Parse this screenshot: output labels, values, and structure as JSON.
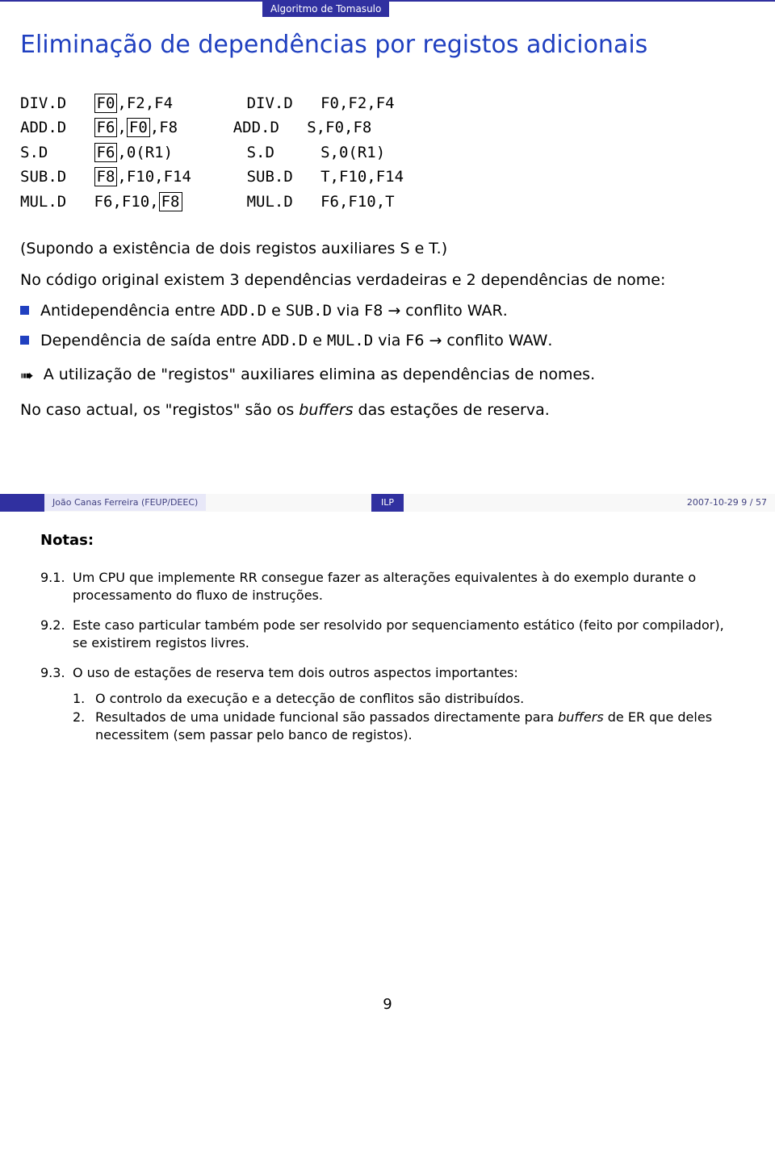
{
  "header": {
    "tag": "Algoritmo de Tomasulo"
  },
  "title": "Eliminação de dependências por registos adicionais",
  "code": {
    "left": {
      "r1": {
        "op": "DIV.D",
        "a": "F0",
        "b": ",F2,F4"
      },
      "r2": {
        "op": "ADD.D",
        "a": "F6",
        "b": ",",
        "c": "F0",
        "d": ",F8"
      },
      "r3": {
        "op": "S.D",
        "a": "F6",
        "b": ",0(R1)"
      },
      "r4": {
        "op": "SUB.D",
        "a": "F8",
        "b": ",F10,F14"
      },
      "r5": {
        "op": "MUL.D",
        "a": "F6,F10,",
        "b": "F8"
      }
    },
    "right": {
      "r1": "DIV.D   F0,F2,F4",
      "r2": "ADD.D   S,F0,F8",
      "r3": "S.D     S,0(R1)",
      "r4": "SUB.D   T,F10,F14",
      "r5": "MUL.D   F6,F10,T"
    }
  },
  "para1": "(Supondo a existência de dois registos auxiliares S e T.)",
  "para2": "No código original existem 3 dependências verdadeiras e 2 dependências de nome:",
  "bullets": {
    "b1_a": "Antidependência entre ",
    "b1_b": "ADD.D",
    "b1_c": " e ",
    "b1_d": "SUB.D",
    "b1_e": " via F8 → conflito ",
    "b1_f": "WAR",
    "b1_g": ".",
    "b2_a": "Dependência de saída entre ",
    "b2_b": "ADD.D",
    "b2_c": " e ",
    "b2_d": "MUL.D",
    "b2_e": " via F6 → conflito ",
    "b2_f": "WAW",
    "b2_g": "."
  },
  "arrow_text": "A utilização de \"registos\" auxiliares elimina as dependências de nomes.",
  "para3_a": "No caso actual, os \"registos\" são os ",
  "para3_b": "buffers",
  "para3_c": " das estações de reserva.",
  "footer": {
    "author": "João Canas Ferreira (FEUP/DEEC)",
    "center": "ILP",
    "right": "2007-10-29     9 / 57"
  },
  "notes": {
    "title": "Notas:",
    "n1_num": "9.1.",
    "n1": "Um CPU que implemente RR consegue fazer as alterações equivalentes à do exemplo durante o processamento do fluxo de instruções.",
    "n2_num": "9.2.",
    "n2": "Este caso particular também pode ser resolvido por sequenciamento estático (feito por compilador), se existirem registos livres.",
    "n3_num": "9.3.",
    "n3": "O uso de estações de reserva tem dois outros aspectos importantes:",
    "s1_num": "1.",
    "s1": "O controlo da execução e a detecção de conflitos são distribuídos.",
    "s2_num": "2.",
    "s2_a": "Resultados de uma unidade funcional são passados directamente para ",
    "s2_b": "buffers",
    "s2_c": " de ER que deles necessitem (sem passar pelo banco de registos)."
  },
  "pagenum": "9"
}
